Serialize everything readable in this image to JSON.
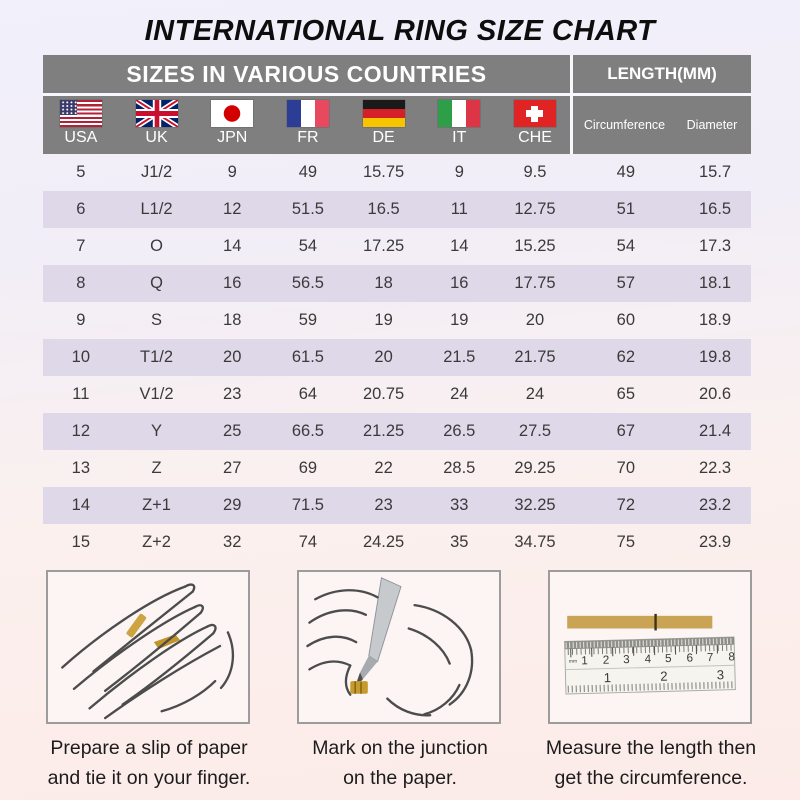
{
  "title": "INTERNATIONAL RING SIZE CHART",
  "table": {
    "header_left": "SIZES IN VARIOUS COUNTRIES",
    "header_right": "LENGTH(MM)",
    "countries": [
      {
        "code": "USA",
        "flag": "usa-flag"
      },
      {
        "code": "UK",
        "flag": "uk-flag"
      },
      {
        "code": "JPN",
        "flag": "japan-flag"
      },
      {
        "code": "FR",
        "flag": "france-flag"
      },
      {
        "code": "DE",
        "flag": "germany-flag"
      },
      {
        "code": "IT",
        "flag": "italy-flag"
      },
      {
        "code": "CHE",
        "flag": "switzerland-flag"
      }
    ],
    "length_columns": [
      "Circumference",
      "Diameter"
    ],
    "rows": [
      [
        "5",
        "J1/2",
        "9",
        "49",
        "15.75",
        "9",
        "9.5",
        "49",
        "15.7"
      ],
      [
        "6",
        "L1/2",
        "12",
        "51.5",
        "16.5",
        "11",
        "12.75",
        "51",
        "16.5"
      ],
      [
        "7",
        "O",
        "14",
        "54",
        "17.25",
        "14",
        "15.25",
        "54",
        "17.3"
      ],
      [
        "8",
        "Q",
        "16",
        "56.5",
        "18",
        "16",
        "17.75",
        "57",
        "18.1"
      ],
      [
        "9",
        "S",
        "18",
        "59",
        "19",
        "19",
        "20",
        "60",
        "18.9"
      ],
      [
        "10",
        "T1/2",
        "20",
        "61.5",
        "20",
        "21.5",
        "21.75",
        "62",
        "19.8"
      ],
      [
        "11",
        "V1/2",
        "23",
        "64",
        "20.75",
        "24",
        "24",
        "65",
        "20.6"
      ],
      [
        "12",
        "Y",
        "25",
        "66.5",
        "21.25",
        "26.5",
        "27.5",
        "67",
        "21.4"
      ],
      [
        "13",
        "Z",
        "27",
        "69",
        "22",
        "28.5",
        "29.25",
        "70",
        "22.3"
      ],
      [
        "14",
        "Z+1",
        "29",
        "71.5",
        "23",
        "33",
        "32.25",
        "72",
        "23.2"
      ],
      [
        "15",
        "Z+2",
        "32",
        "74",
        "24.25",
        "35",
        "34.75",
        "75",
        "23.9"
      ]
    ]
  },
  "instructions": [
    {
      "lines": [
        "Prepare a slip of paper",
        "and tie it on your finger."
      ]
    },
    {
      "lines": [
        "Mark on the junction",
        "on the paper."
      ]
    },
    {
      "lines": [
        "Measure the length then",
        "get the circumference."
      ],
      "ruler_unit": "mm",
      "ruler_cm": [
        "1",
        "2",
        "3",
        "4",
        "5",
        "6",
        "7",
        "8"
      ],
      "ruler_inch": [
        "1",
        "2",
        "3"
      ]
    }
  ],
  "colors": {
    "header_gray": "#7f7f7f",
    "row_stripe_lavender": "#ded8e9",
    "background_top": "#f1f0fb",
    "background_bottom": "#fcebe8",
    "paper_gold": "#c9a455",
    "text_dark": "#3a3a3a"
  }
}
